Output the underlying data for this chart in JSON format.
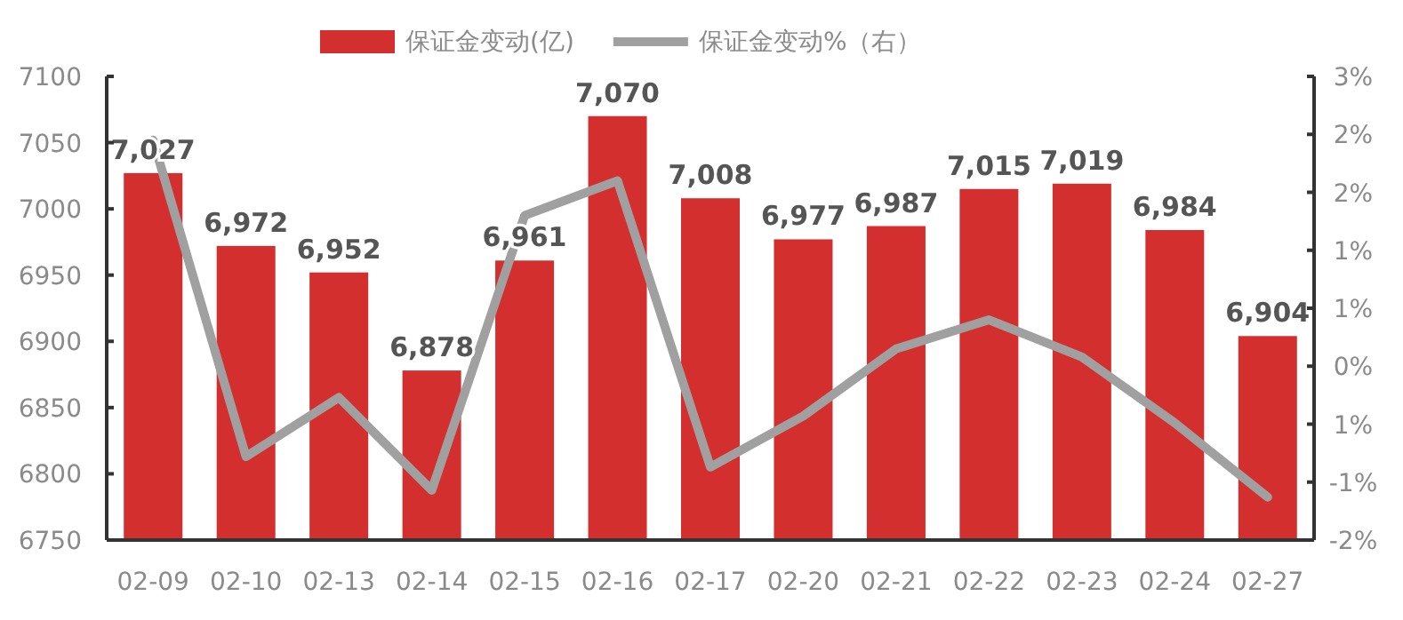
{
  "chart_data": {
    "type": "bar",
    "categories": [
      "02-09",
      "02-10",
      "02-13",
      "02-14",
      "02-15",
      "02-16",
      "02-17",
      "02-20",
      "02-21",
      "02-22",
      "02-23",
      "02-24",
      "02-27"
    ],
    "series": [
      {
        "name": "保证金变动(亿)",
        "color": "#d32f2f",
        "values": [
          7027,
          6972,
          6952,
          6878,
          6961,
          7070,
          7008,
          6977,
          6987,
          7015,
          7019,
          6984,
          6904
        ],
        "value_labels": [
          "7,027",
          "6,972",
          "6,952",
          "6,878",
          "6,961",
          "7,070",
          "7,008",
          "6,977",
          "6,987",
          "7,015",
          "7,019",
          "6,984",
          "6,904"
        ]
      },
      {
        "name": "保证金变动%（右）",
        "type": "line",
        "axis": "y2",
        "color": "#a0a0a0",
        "values": [
          1.95,
          -0.78,
          -0.27,
          -1.07,
          1.3,
          1.6,
          -0.87,
          -0.43,
          0.15,
          0.4,
          0.08,
          -0.49,
          -1.13
        ]
      }
    ],
    "ylim": [
      6750,
      7100
    ],
    "yticks": [
      6750,
      6800,
      6850,
      6900,
      6950,
      7000,
      7050,
      7100
    ],
    "y2lim": [
      -1.5,
      2.5
    ],
    "y2ticks": [
      {
        "value": -1.5,
        "label": "-2%"
      },
      {
        "value": -1.0,
        "label": "-1%"
      },
      {
        "value": -0.5,
        "label": "1%"
      },
      {
        "value": 0,
        "label": "0%"
      },
      {
        "value": 0.5,
        "label": "1%"
      },
      {
        "value": 1.0,
        "label": "1%"
      },
      {
        "value": 1.5,
        "label": "2%"
      },
      {
        "value": 2.0,
        "label": "2%"
      },
      {
        "value": 2.5,
        "label": "3%"
      }
    ],
    "legend": "top"
  }
}
